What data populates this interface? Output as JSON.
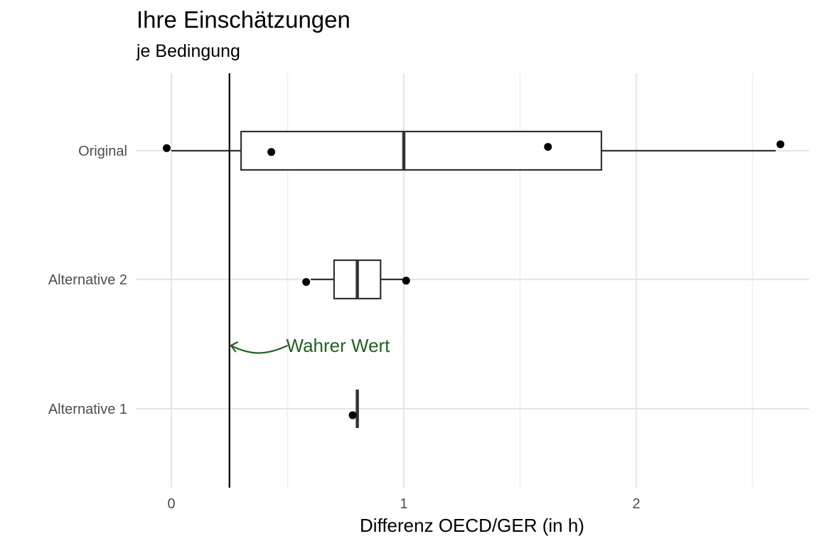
{
  "chart_data": {
    "type": "boxplot",
    "title": "Ihre Einschätzungen",
    "subtitle": "je Bedingung",
    "xlabel": "Differenz OECD/GER (in h)",
    "ylabel": "",
    "xlim": [
      -0.15,
      2.75
    ],
    "x_ticks": [
      0,
      1,
      2
    ],
    "x_tick_labels": [
      "0",
      "1",
      "2"
    ],
    "categories": [
      "Original",
      "Alternative 2",
      "Alternative 1"
    ],
    "grid": true,
    "boxes": [
      {
        "category": "Original",
        "whisker_low": 0.0,
        "q1": 0.3,
        "median": 1.0,
        "q3": 1.85,
        "whisker_high": 2.6
      },
      {
        "category": "Alternative 2",
        "whisker_low": 0.6,
        "q1": 0.7,
        "median": 0.8,
        "q3": 0.9,
        "whisker_high": 1.0
      },
      {
        "category": "Alternative 1",
        "whisker_low": 0.8,
        "q1": 0.8,
        "median": 0.8,
        "q3": 0.8,
        "whisker_high": 0.8
      }
    ],
    "points": [
      {
        "category": "Original",
        "x": -0.02,
        "jitter": -0.02
      },
      {
        "category": "Original",
        "x": 0.43,
        "jitter": 0.01
      },
      {
        "category": "Original",
        "x": 1.62,
        "jitter": -0.03
      },
      {
        "category": "Original",
        "x": 2.62,
        "jitter": -0.05
      },
      {
        "category": "Alternative 2",
        "x": 0.58,
        "jitter": 0.02
      },
      {
        "category": "Alternative 2",
        "x": 1.01,
        "jitter": 0.01
      },
      {
        "category": "Alternative 1",
        "x": 0.78,
        "jitter": 0.05
      }
    ],
    "reference_line": {
      "x": 0.25,
      "label": "Wahrer Wert",
      "label_color": "#1e641e"
    }
  }
}
